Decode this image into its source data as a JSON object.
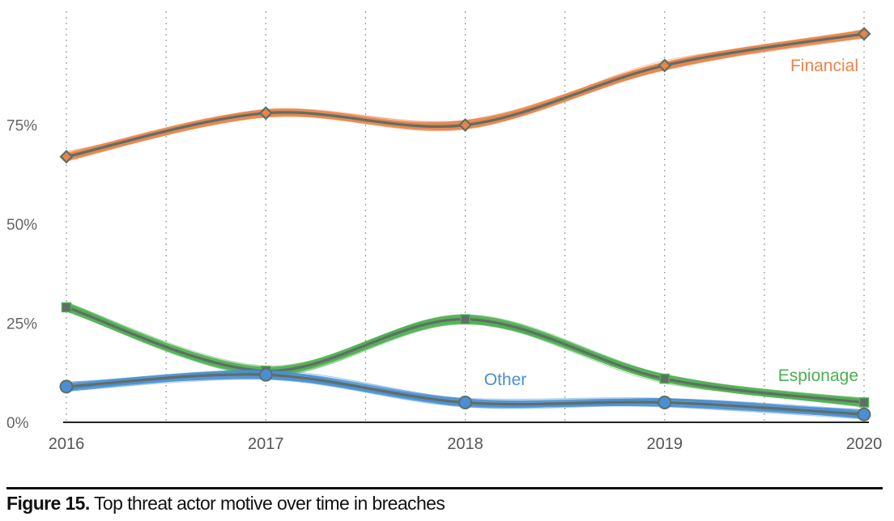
{
  "caption": {
    "label": "Figure 15.",
    "text": "Top threat actor motive over time in breaches"
  },
  "colors": {
    "Financial": "#e8834a",
    "Espionage": "#4caf50",
    "Other": "#4a8fd4",
    "center_line": "#5f6f64",
    "axis": "#222222",
    "grid": "#999999"
  },
  "chart_data": {
    "type": "line",
    "title": "",
    "xlabel": "",
    "ylabel": "",
    "x": [
      2016,
      2017,
      2018,
      2019,
      2020
    ],
    "x_tick_labels": [
      "2016",
      "2017",
      "2018",
      "2019",
      "2020"
    ],
    "y_tick_values": [
      0,
      25,
      50,
      75
    ],
    "y_tick_labels": [
      "0%",
      "25%",
      "50%",
      "75%"
    ],
    "ylim": [
      0,
      100
    ],
    "grid": "vertical dotted",
    "legend": "inline labels at line ends",
    "series": [
      {
        "name": "Financial",
        "values": [
          67,
          78,
          75,
          90,
          98
        ],
        "marker": "diamond"
      },
      {
        "name": "Espionage",
        "values": [
          29,
          13,
          26,
          11,
          5
        ],
        "marker": "square"
      },
      {
        "name": "Other",
        "values": [
          9,
          12,
          5,
          5,
          2
        ],
        "marker": "circle"
      }
    ]
  }
}
